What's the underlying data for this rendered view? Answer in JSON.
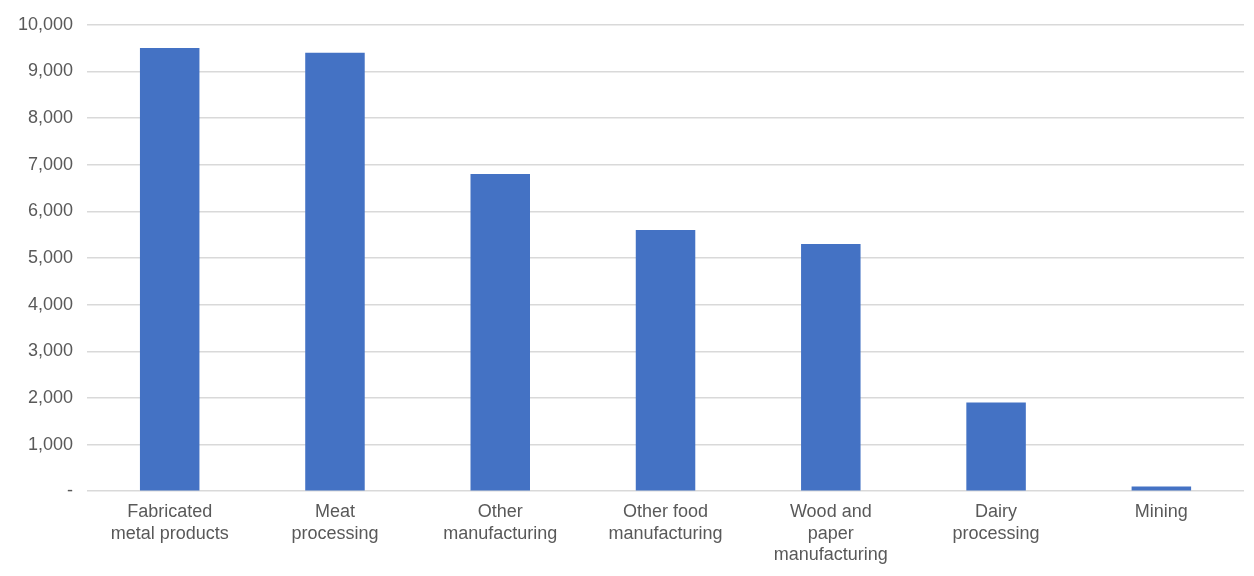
{
  "chart_data": {
    "type": "bar",
    "categories": [
      "Fabricated metal products",
      "Meat processing",
      "Other manufacturing",
      "Other food manufacturing",
      "Wood and paper manufacturing",
      "Dairy processing",
      "Mining"
    ],
    "values": [
      9500,
      9400,
      6800,
      5600,
      5300,
      1900,
      100
    ],
    "color": "#4472c4",
    "ylim": [
      0,
      10000
    ],
    "yticks": [
      {
        "value": 0,
        "label": "-"
      },
      {
        "value": 1000,
        "label": "1,000"
      },
      {
        "value": 2000,
        "label": "2,000"
      },
      {
        "value": 3000,
        "label": "3,000"
      },
      {
        "value": 4000,
        "label": "4,000"
      },
      {
        "value": 5000,
        "label": "5,000"
      },
      {
        "value": 6000,
        "label": "6,000"
      },
      {
        "value": 7000,
        "label": "7,000"
      },
      {
        "value": 8000,
        "label": "8,000"
      },
      {
        "value": 9000,
        "label": "9,000"
      },
      {
        "value": 10000,
        "label": "10,000"
      }
    ],
    "grid": "y",
    "legend": false
  }
}
